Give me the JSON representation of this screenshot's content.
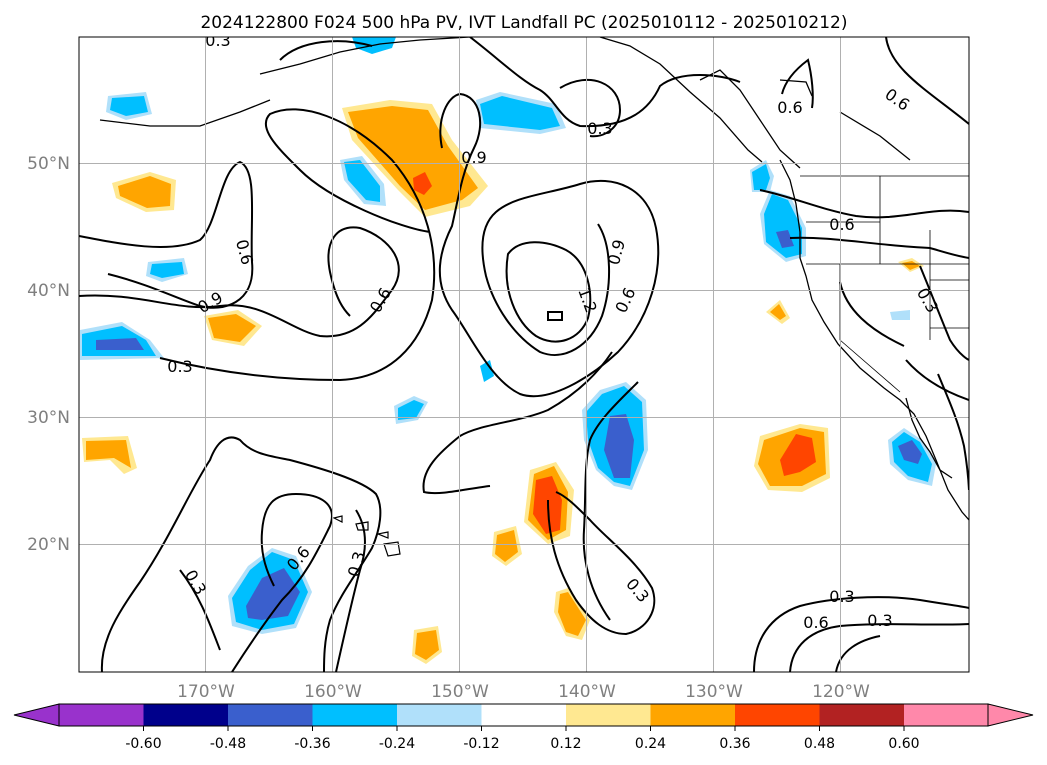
{
  "chart_data": {
    "type": "contour-map",
    "title": "2024122800 F024 500 hPa PV, IVT Landfall PC (2025010112 - 2025010212)",
    "lat_ticks": [
      "50°N",
      "40°N",
      "30°N",
      "20°N"
    ],
    "lon_ticks": [
      "170°W",
      "160°W",
      "150°W",
      "140°W",
      "130°W",
      "120°W"
    ],
    "extent": {
      "lon": [
        -180,
        -110
      ],
      "lat": [
        10,
        60
      ]
    },
    "colorbar": {
      "levels": [
        "-0.60",
        "-0.48",
        "-0.36",
        "-0.24",
        "-0.12",
        "0.12",
        "0.24",
        "0.36",
        "0.48",
        "0.60"
      ],
      "colors": [
        "#9932cc",
        "#00008b",
        "#3a5fcd",
        "#00bfff",
        "#b0e0fa",
        "#ffffff",
        "#ffe891",
        "#ffa500",
        "#ff4500",
        "#b22222",
        "#ff88aa"
      ]
    },
    "contour_labels": [
      "0.3",
      "0.3",
      "0.6",
      "0.6",
      "0.9",
      "0.6",
      "0.9",
      "0.3",
      "0.6",
      "0.6",
      "0.9",
      "1.2",
      "0.6",
      "0.3",
      "0.3",
      "0.6",
      "0.3",
      "0.3",
      "0.3",
      "0.6",
      "0.3"
    ],
    "contour_levels": [
      0.3,
      0.6,
      0.9,
      1.2
    ],
    "grid": true
  }
}
